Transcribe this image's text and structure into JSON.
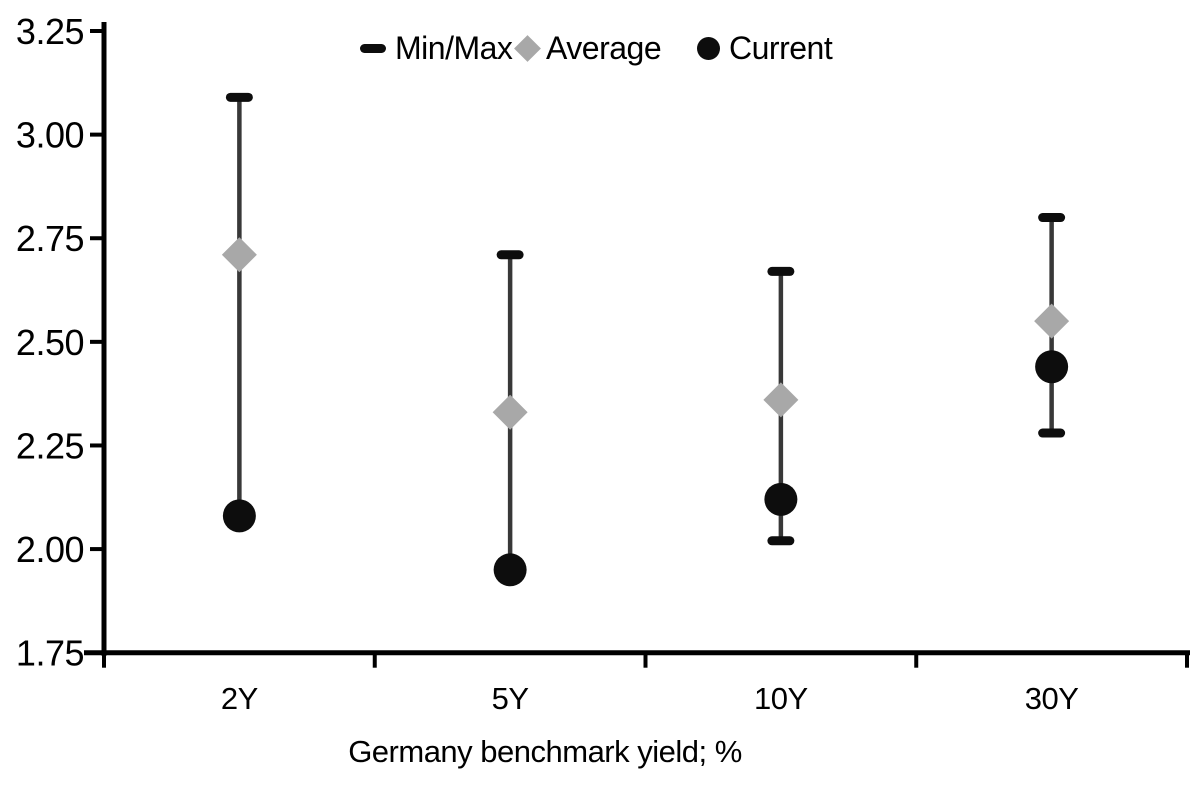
{
  "chart_data": {
    "type": "scatter",
    "variant": "min-max range whiskers with average and current markers",
    "title": "",
    "xlabel": "Germany benchmark yield; %",
    "ylabel": "",
    "categories": [
      "2Y",
      "5Y",
      "10Y",
      "30Y"
    ],
    "legend": [
      "Min/Max",
      "Average",
      "Current"
    ],
    "legend_position": "top-center",
    "grid": false,
    "ylim": [
      1.75,
      3.25
    ],
    "y_ticks": [
      3.25,
      3.0,
      2.75,
      2.5,
      2.25,
      2.0,
      1.75
    ],
    "y_tick_labels": [
      "3.25",
      "3.00",
      "2.75",
      "2.50",
      "2.25",
      "2.00",
      "1.75"
    ],
    "series": [
      {
        "name": "Min/Max",
        "role": "range",
        "marker": "dash",
        "color": "#0d0d0d",
        "min": [
          2.08,
          1.95,
          2.02,
          2.28
        ],
        "max": [
          3.09,
          2.71,
          2.67,
          2.8
        ]
      },
      {
        "name": "Average",
        "role": "point",
        "marker": "diamond",
        "color": "#a8a8a8",
        "values": [
          2.71,
          2.33,
          2.36,
          2.55
        ]
      },
      {
        "name": "Current",
        "role": "point",
        "marker": "circle",
        "color": "#0d0d0d",
        "values": [
          2.08,
          1.95,
          2.12,
          2.44
        ]
      }
    ],
    "colors": {
      "axis": "#000000",
      "tick_label": "#000000",
      "range_line": "#383838",
      "range_cap": "#0d0d0d",
      "average_marker": "#a8a8a8",
      "current_marker": "#0d0d0d",
      "background": "#ffffff"
    }
  }
}
